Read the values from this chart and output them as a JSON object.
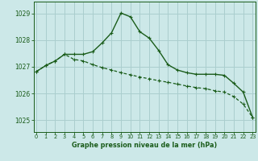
{
  "line1_x": [
    0,
    1,
    2,
    3,
    4,
    5,
    6,
    7,
    8,
    9,
    10,
    11,
    12,
    13,
    14,
    15,
    16,
    17,
    18,
    19,
    20,
    21,
    22,
    23
  ],
  "line1_y": [
    1026.82,
    1027.05,
    1027.22,
    1027.47,
    1027.47,
    1027.47,
    1027.57,
    1027.9,
    1028.28,
    1029.02,
    1028.88,
    1028.32,
    1028.08,
    1027.62,
    1027.08,
    1026.88,
    1026.78,
    1026.72,
    1026.72,
    1026.72,
    1026.68,
    1026.38,
    1026.05,
    1025.1
  ],
  "line2_x": [
    0,
    1,
    2,
    3,
    4,
    5,
    6,
    7,
    8,
    9,
    10,
    11,
    12,
    13,
    14,
    15,
    16,
    17,
    18,
    19,
    20,
    21,
    22,
    23
  ],
  "line2_y": [
    1026.82,
    1027.05,
    1027.22,
    1027.47,
    1027.28,
    1027.22,
    1027.08,
    1026.97,
    1026.88,
    1026.78,
    1026.7,
    1026.62,
    1026.55,
    1026.48,
    1026.42,
    1026.35,
    1026.28,
    1026.22,
    1026.18,
    1026.1,
    1026.05,
    1025.88,
    1025.6,
    1025.1
  ],
  "line_color": "#1a5c1a",
  "bg_color": "#cce8e8",
  "grid_color": "#aacece",
  "xlabel": "Graphe pression niveau de la mer (hPa)",
  "yticks": [
    1025,
    1026,
    1027,
    1028,
    1029
  ],
  "xtick_labels": [
    "0",
    "1",
    "2",
    "3",
    "4",
    "5",
    "6",
    "7",
    "8",
    "9",
    "10",
    "11",
    "12",
    "13",
    "14",
    "15",
    "16",
    "17",
    "18",
    "19",
    "20",
    "21",
    "22",
    "23"
  ],
  "xticks": [
    0,
    1,
    2,
    3,
    4,
    5,
    6,
    7,
    8,
    9,
    10,
    11,
    12,
    13,
    14,
    15,
    16,
    17,
    18,
    19,
    20,
    21,
    22,
    23
  ],
  "ylim": [
    1024.55,
    1029.45
  ],
  "xlim": [
    -0.3,
    23.3
  ]
}
